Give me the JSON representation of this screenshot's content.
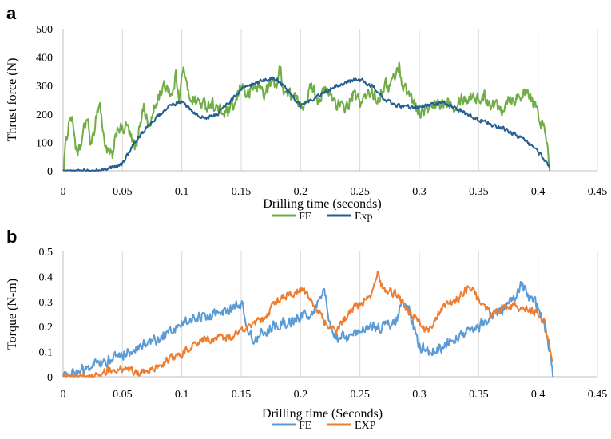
{
  "chart_data": [
    {
      "type": "line",
      "panel_label": "a",
      "xlabel": "Drilling time (seconds)",
      "ylabel": "Thrust force (N)",
      "xlim": [
        0,
        0.45
      ],
      "ylim": [
        0,
        500
      ],
      "xticks": [
        "0",
        "0.05",
        "0.1",
        "0.15",
        "0.2",
        "0.25",
        "0.3",
        "0.35",
        "0.4",
        "0.45"
      ],
      "yticks": [
        "0",
        "100",
        "200",
        "300",
        "400",
        "500"
      ],
      "grid": "vertical",
      "legend_position": "bottom",
      "series": [
        {
          "name": "FE",
          "color": "#70ad47",
          "noise": 32,
          "x": [
            0,
            0.003,
            0.006,
            0.009,
            0.012,
            0.016,
            0.02,
            0.024,
            0.028,
            0.031,
            0.034,
            0.038,
            0.042,
            0.046,
            0.05,
            0.054,
            0.058,
            0.062,
            0.065,
            0.068,
            0.072,
            0.076,
            0.08,
            0.084,
            0.088,
            0.092,
            0.095,
            0.098,
            0.1,
            0.102,
            0.105,
            0.11,
            0.115,
            0.12,
            0.125,
            0.13,
            0.135,
            0.14,
            0.145,
            0.15,
            0.155,
            0.16,
            0.165,
            0.17,
            0.175,
            0.18,
            0.183,
            0.186,
            0.19,
            0.195,
            0.2,
            0.205,
            0.21,
            0.215,
            0.22,
            0.225,
            0.23,
            0.235,
            0.24,
            0.245,
            0.25,
            0.255,
            0.26,
            0.265,
            0.27,
            0.275,
            0.28,
            0.283,
            0.286,
            0.29,
            0.295,
            0.3,
            0.305,
            0.31,
            0.315,
            0.32,
            0.325,
            0.33,
            0.335,
            0.34,
            0.345,
            0.35,
            0.355,
            0.36,
            0.365,
            0.37,
            0.375,
            0.38,
            0.385,
            0.39,
            0.395,
            0.4,
            0.405,
            0.408,
            0.41
          ],
          "y": [
            0,
            120,
            200,
            150,
            40,
            110,
            190,
            80,
            200,
            240,
            120,
            60,
            50,
            160,
            140,
            160,
            100,
            80,
            180,
            230,
            150,
            200,
            260,
            290,
            300,
            260,
            340,
            260,
            330,
            360,
            270,
            250,
            240,
            230,
            240,
            220,
            200,
            210,
            230,
            310,
            260,
            290,
            300,
            270,
            310,
            310,
            360,
            280,
            270,
            260,
            220,
            260,
            300,
            250,
            280,
            270,
            240,
            220,
            230,
            270,
            240,
            260,
            280,
            250,
            300,
            300,
            340,
            370,
            300,
            280,
            250,
            200,
            210,
            220,
            230,
            240,
            250,
            230,
            260,
            250,
            270,
            250,
            260,
            240,
            230,
            220,
            260,
            250,
            270,
            270,
            250,
            200,
            150,
            80,
            0
          ]
        },
        {
          "name": "Exp",
          "color": "#255e91",
          "noise": 10,
          "x": [
            0,
            0.01,
            0.02,
            0.03,
            0.04,
            0.05,
            0.055,
            0.06,
            0.07,
            0.08,
            0.09,
            0.095,
            0.1,
            0.105,
            0.11,
            0.12,
            0.13,
            0.14,
            0.15,
            0.16,
            0.17,
            0.175,
            0.18,
            0.19,
            0.2,
            0.21,
            0.22,
            0.23,
            0.24,
            0.25,
            0.26,
            0.27,
            0.28,
            0.29,
            0.3,
            0.31,
            0.32,
            0.33,
            0.34,
            0.35,
            0.36,
            0.37,
            0.38,
            0.39,
            0.4,
            0.405,
            0.41
          ],
          "y": [
            0,
            0,
            0,
            0,
            10,
            25,
            60,
            100,
            150,
            195,
            225,
            237,
            240,
            225,
            205,
            185,
            200,
            240,
            285,
            305,
            320,
            325,
            320,
            280,
            230,
            250,
            275,
            300,
            315,
            320,
            300,
            255,
            230,
            225,
            225,
            235,
            240,
            225,
            200,
            180,
            165,
            150,
            130,
            105,
            65,
            40,
            10
          ]
        }
      ]
    },
    {
      "type": "line",
      "panel_label": "b",
      "xlabel": "Drilling time (Seconds)",
      "ylabel": "Torque  (N-m)",
      "xlim": [
        0,
        0.45
      ],
      "ylim": [
        0,
        0.5
      ],
      "xticks": [
        "0",
        "0.05",
        "0.1",
        "0.15",
        "0.2",
        "0.25",
        "0.3",
        "0.35",
        "0.4",
        "0.45"
      ],
      "yticks": [
        "0",
        "0.1",
        "0.2",
        "0.3",
        "0.4",
        "0.5"
      ],
      "grid": "vertical",
      "legend_position": "bottom",
      "series": [
        {
          "name": "FE",
          "color": "#5b9bd5",
          "noise": 0.03,
          "x": [
            0,
            0.005,
            0.01,
            0.02,
            0.03,
            0.04,
            0.05,
            0.06,
            0.07,
            0.08,
            0.09,
            0.1,
            0.11,
            0.12,
            0.13,
            0.14,
            0.145,
            0.15,
            0.155,
            0.16,
            0.17,
            0.18,
            0.19,
            0.2,
            0.21,
            0.215,
            0.22,
            0.225,
            0.23,
            0.24,
            0.25,
            0.26,
            0.27,
            0.28,
            0.285,
            0.29,
            0.295,
            0.3,
            0.31,
            0.32,
            0.33,
            0.34,
            0.35,
            0.36,
            0.37,
            0.38,
            0.385,
            0.39,
            0.4,
            0.405,
            0.41,
            0.413
          ],
          "y": [
            0,
            0.01,
            0.02,
            0.04,
            0.05,
            0.07,
            0.09,
            0.11,
            0.13,
            0.15,
            0.18,
            0.21,
            0.23,
            0.24,
            0.25,
            0.26,
            0.28,
            0.3,
            0.2,
            0.14,
            0.18,
            0.21,
            0.22,
            0.24,
            0.25,
            0.3,
            0.34,
            0.2,
            0.15,
            0.16,
            0.18,
            0.2,
            0.2,
            0.22,
            0.28,
            0.3,
            0.2,
            0.12,
            0.1,
            0.12,
            0.15,
            0.18,
            0.2,
            0.24,
            0.27,
            0.32,
            0.37,
            0.34,
            0.28,
            0.22,
            0.1,
            0
          ]
        },
        {
          "name": "EXP",
          "color": "#ed7d31",
          "noise": 0.022,
          "x": [
            0,
            0.02,
            0.03,
            0.04,
            0.05,
            0.06,
            0.07,
            0.08,
            0.09,
            0.1,
            0.11,
            0.12,
            0.13,
            0.14,
            0.15,
            0.16,
            0.17,
            0.18,
            0.19,
            0.2,
            0.205,
            0.21,
            0.22,
            0.23,
            0.24,
            0.25,
            0.26,
            0.265,
            0.27,
            0.275,
            0.28,
            0.29,
            0.3,
            0.305,
            0.31,
            0.32,
            0.33,
            0.34,
            0.345,
            0.35,
            0.36,
            0.37,
            0.38,
            0.39,
            0.4,
            0.405,
            0.41,
            0.412
          ],
          "y": [
            0,
            0,
            0.01,
            0.03,
            0.03,
            0.02,
            0.02,
            0.04,
            0.07,
            0.09,
            0.13,
            0.15,
            0.15,
            0.16,
            0.18,
            0.2,
            0.24,
            0.3,
            0.33,
            0.35,
            0.34,
            0.3,
            0.22,
            0.18,
            0.25,
            0.29,
            0.33,
            0.41,
            0.35,
            0.34,
            0.33,
            0.27,
            0.22,
            0.18,
            0.2,
            0.28,
            0.3,
            0.35,
            0.36,
            0.3,
            0.25,
            0.27,
            0.28,
            0.27,
            0.25,
            0.22,
            0.12,
            0.06
          ]
        }
      ]
    }
  ]
}
